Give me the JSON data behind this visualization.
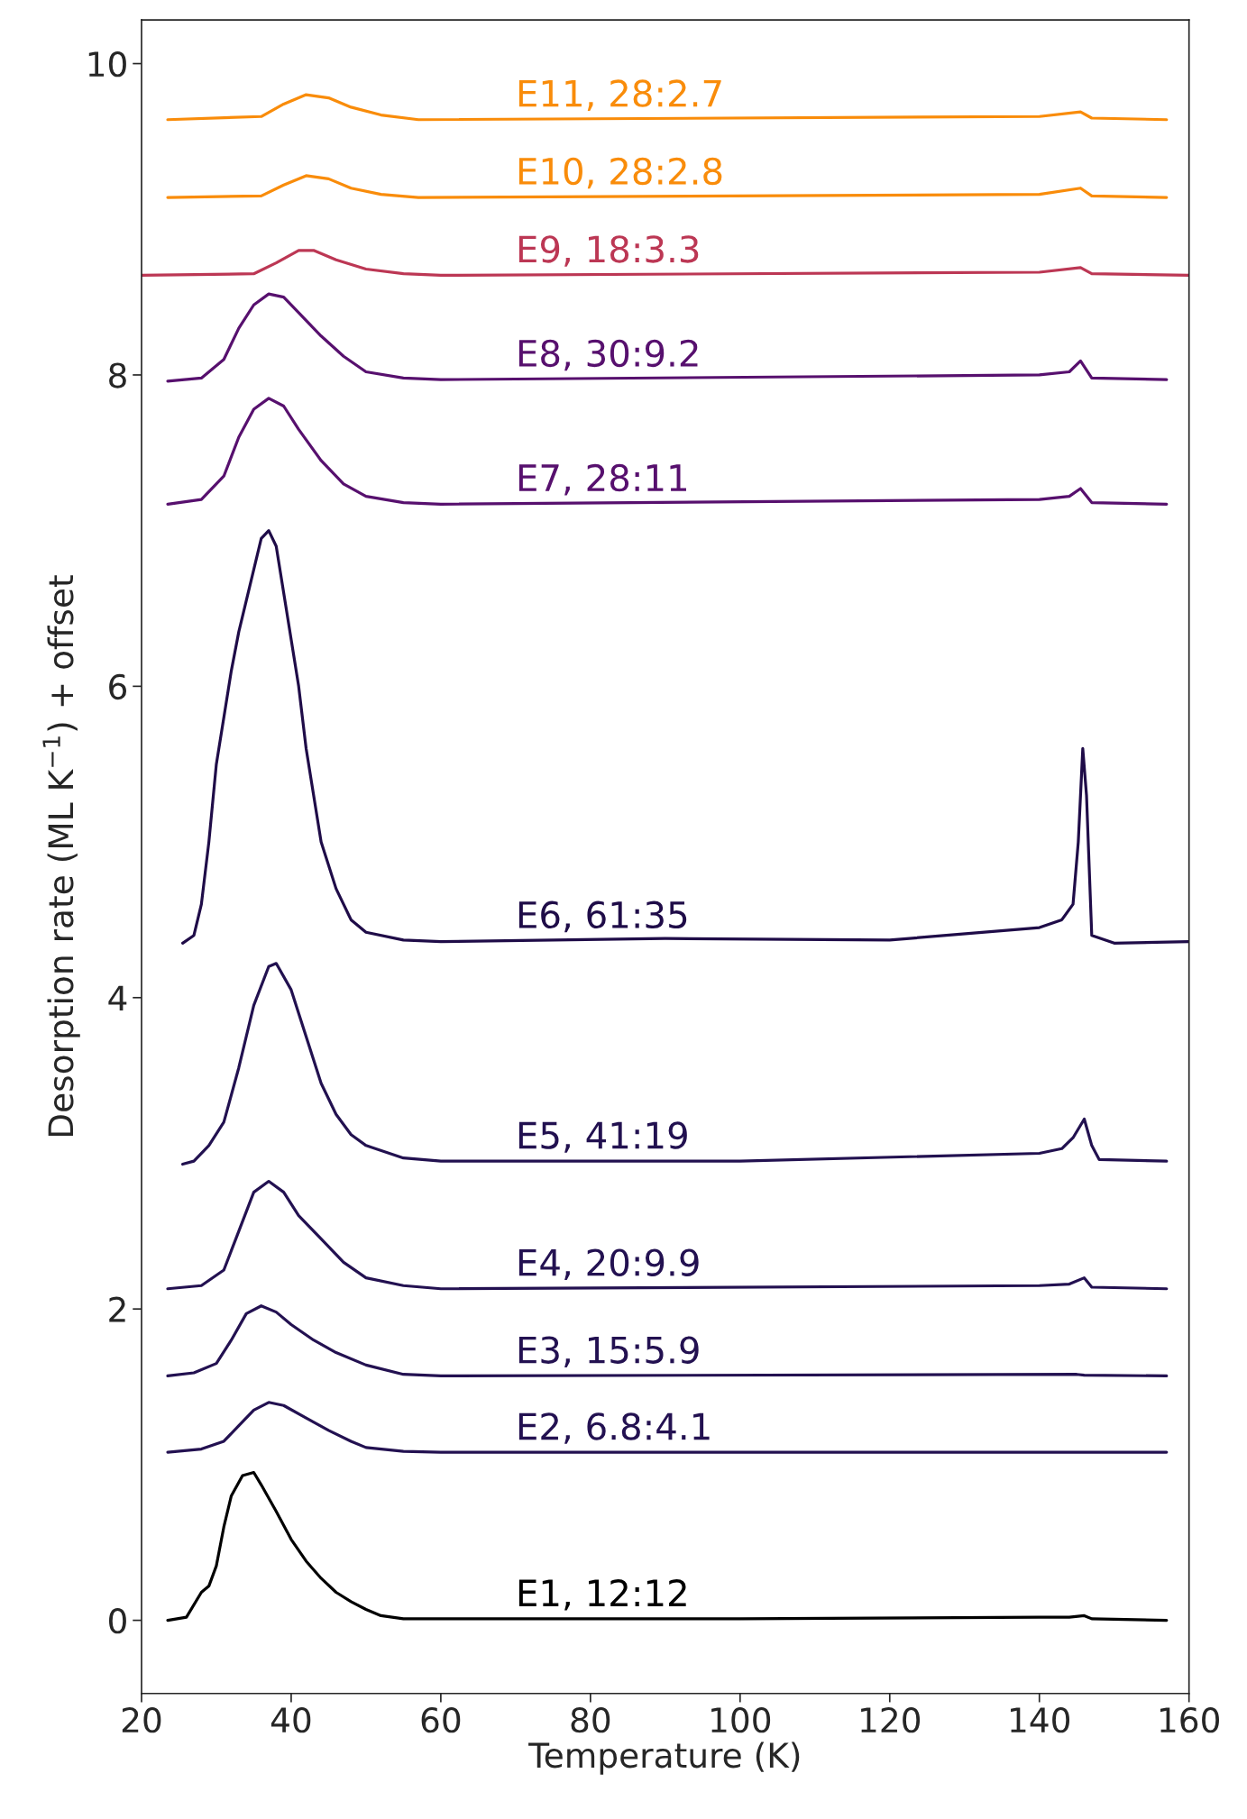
{
  "chart_data": {
    "type": "line",
    "xlabel": "Temperature (K)",
    "ylabel": "Desorption rate (ML K$^{−1}$) + offset",
    "xlim": [
      20,
      160
    ],
    "xticks": [
      20,
      40,
      60,
      80,
      100,
      120,
      140,
      160
    ],
    "ylim": [
      -0.47,
      10.28
    ],
    "yticks": [
      0,
      2,
      4,
      6,
      8,
      10
    ],
    "grid": false,
    "legend": false,
    "marker": "none",
    "line_style": "solid",
    "series": [
      {
        "name": "E1, 12:12",
        "color": "#000000",
        "x": [
          23.5,
          26,
          28,
          29,
          30,
          31,
          32,
          33.5,
          35,
          36,
          38,
          40,
          42,
          44,
          46,
          48,
          50,
          52,
          55,
          60,
          100,
          140,
          144,
          146,
          147,
          157
        ],
        "values": [
          0,
          0.02,
          0.18,
          0.22,
          0.35,
          0.6,
          0.8,
          0.93,
          0.95,
          0.87,
          0.7,
          0.52,
          0.38,
          0.27,
          0.18,
          0.12,
          0.07,
          0.03,
          0.01,
          0.01,
          0.01,
          0.02,
          0.02,
          0.03,
          0.01,
          0
        ]
      },
      {
        "name": "E2, 6.8:4.1",
        "color": "#231151",
        "x": [
          23.5,
          28,
          31,
          33,
          35,
          37,
          39,
          42,
          45,
          48,
          50,
          55,
          60,
          157
        ],
        "values": [
          1.08,
          1.1,
          1.15,
          1.25,
          1.35,
          1.4,
          1.38,
          1.3,
          1.22,
          1.15,
          1.11,
          1.085,
          1.08,
          1.08
        ]
      },
      {
        "name": "E3, 15:5.9",
        "color": "#231151",
        "x": [
          23.5,
          27,
          30,
          32,
          34,
          36,
          38,
          40,
          43,
          46,
          50,
          55,
          60,
          145,
          146,
          157
        ],
        "values": [
          1.57,
          1.59,
          1.65,
          1.8,
          1.97,
          2.02,
          1.98,
          1.9,
          1.8,
          1.72,
          1.64,
          1.58,
          1.57,
          1.58,
          1.575,
          1.57
        ]
      },
      {
        "name": "E4, 20:9.9",
        "color": "#231151",
        "x": [
          23.5,
          28,
          31,
          33,
          35,
          37,
          39,
          41,
          44,
          47,
          50,
          55,
          60,
          140,
          144,
          146,
          147,
          157
        ],
        "values": [
          2.13,
          2.15,
          2.25,
          2.5,
          2.75,
          2.82,
          2.75,
          2.6,
          2.45,
          2.3,
          2.2,
          2.15,
          2.13,
          2.15,
          2.16,
          2.2,
          2.14,
          2.13
        ]
      },
      {
        "name": "E5, 41:19",
        "color": "#221150",
        "x": [
          25.5,
          27,
          29,
          31,
          33,
          35,
          37,
          38,
          40,
          42,
          44,
          46,
          48,
          50,
          55,
          60,
          100,
          140,
          143,
          144.5,
          146,
          147,
          148,
          157
        ],
        "values": [
          2.93,
          2.95,
          3.05,
          3.2,
          3.55,
          3.95,
          4.2,
          4.22,
          4.05,
          3.75,
          3.45,
          3.25,
          3.12,
          3.05,
          2.97,
          2.95,
          2.95,
          3.0,
          3.03,
          3.1,
          3.22,
          3.05,
          2.96,
          2.95
        ]
      },
      {
        "name": "E6, 61:35",
        "color": "#1f0c48",
        "x": [
          25.5,
          27,
          28,
          29,
          30,
          31,
          32,
          33,
          34,
          35,
          36,
          37,
          38,
          39,
          40,
          41,
          42,
          43,
          44,
          46,
          48,
          50,
          55,
          60,
          90,
          120,
          140,
          143,
          144.5,
          145.2,
          145.8,
          146.3,
          147,
          150,
          160
        ],
        "values": [
          4.35,
          4.4,
          4.6,
          5.0,
          5.5,
          5.8,
          6.1,
          6.35,
          6.55,
          6.75,
          6.95,
          7.0,
          6.9,
          6.6,
          6.3,
          6.0,
          5.6,
          5.3,
          5.0,
          4.7,
          4.5,
          4.42,
          4.37,
          4.36,
          4.38,
          4.37,
          4.45,
          4.5,
          4.6,
          5.0,
          5.6,
          5.3,
          4.4,
          4.35,
          4.36
        ]
      },
      {
        "name": "E7, 28:11",
        "color": "#57106e",
        "x": [
          23.5,
          28,
          31,
          33,
          35,
          37,
          39,
          41,
          44,
          47,
          50,
          55,
          60,
          140,
          144,
          145.5,
          147,
          157
        ],
        "values": [
          7.17,
          7.2,
          7.35,
          7.6,
          7.78,
          7.85,
          7.8,
          7.65,
          7.45,
          7.3,
          7.22,
          7.18,
          7.17,
          7.2,
          7.22,
          7.27,
          7.18,
          7.17
        ]
      },
      {
        "name": "E8, 30:9.2",
        "color": "#57106e",
        "x": [
          23.5,
          28,
          31,
          33,
          35,
          37,
          39,
          41,
          44,
          47,
          50,
          55,
          60,
          140,
          144,
          145.5,
          147,
          157
        ],
        "values": [
          7.96,
          7.98,
          8.1,
          8.3,
          8.45,
          8.52,
          8.5,
          8.4,
          8.25,
          8.12,
          8.02,
          7.98,
          7.97,
          8.0,
          8.02,
          8.09,
          7.98,
          7.97
        ]
      },
      {
        "name": "E9, 18:3.3",
        "color": "#bc3754",
        "x": [
          20,
          35,
          38,
          41,
          43,
          46,
          50,
          55,
          60,
          140,
          145.5,
          147,
          160
        ],
        "values": [
          8.64,
          8.65,
          8.72,
          8.8,
          8.8,
          8.74,
          8.68,
          8.65,
          8.64,
          8.66,
          8.69,
          8.65,
          8.64
        ]
      },
      {
        "name": "E10, 28:2.8",
        "color": "#f98c0a",
        "x": [
          23.5,
          36,
          39,
          42,
          45,
          48,
          52,
          57,
          140,
          145.5,
          147,
          157
        ],
        "values": [
          9.14,
          9.15,
          9.22,
          9.28,
          9.26,
          9.2,
          9.16,
          9.14,
          9.16,
          9.2,
          9.15,
          9.14
        ]
      },
      {
        "name": "E11, 28:2.7",
        "color": "#f98c0a",
        "x": [
          23.5,
          36,
          39,
          42,
          45,
          48,
          52,
          57,
          140,
          145.5,
          147,
          157
        ],
        "values": [
          9.64,
          9.66,
          9.74,
          9.8,
          9.78,
          9.72,
          9.67,
          9.64,
          9.66,
          9.69,
          9.65,
          9.64
        ]
      }
    ]
  }
}
